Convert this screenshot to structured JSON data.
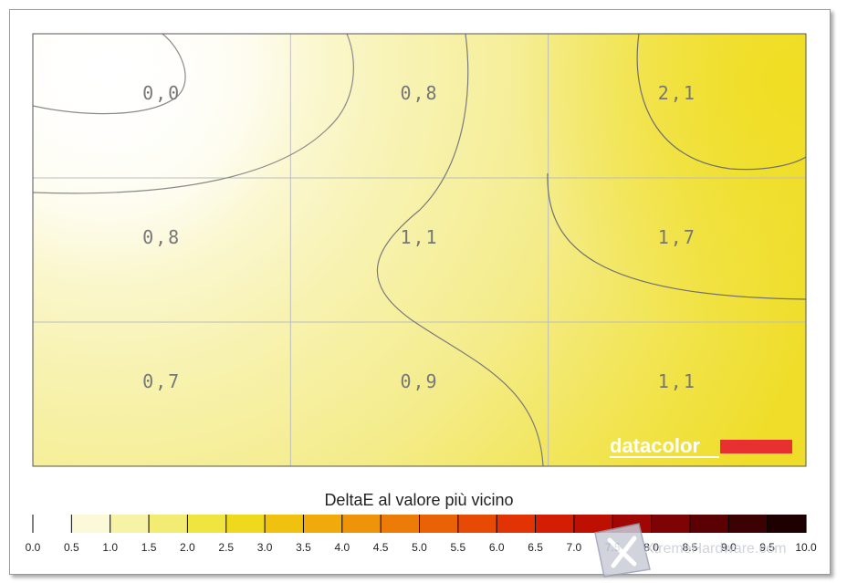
{
  "chart_data": {
    "type": "heatmap",
    "title": "DeltaE al valore più vicino",
    "rows": 3,
    "cols": 3,
    "cells": [
      [
        "0,0",
        "0,8",
        "2,1"
      ],
      [
        "0,8",
        "1,1",
        "1,7"
      ],
      [
        "0,7",
        "0,9",
        "1,1"
      ]
    ],
    "values": [
      [
        0.0,
        0.8,
        2.1
      ],
      [
        0.8,
        1.1,
        1.7
      ],
      [
        0.7,
        0.9,
        1.1
      ]
    ],
    "color_scale": {
      "min": 0.0,
      "max": 10.0,
      "tick_labels": [
        "0.0",
        "0.5",
        "1.0",
        "1.5",
        "2.0",
        "2.5",
        "3.0",
        "3.5",
        "4.0",
        "4.5",
        "5.0",
        "5.5",
        "6.0",
        "6.5",
        "7.0",
        "7.5",
        "8.0",
        "8.5",
        "9.0",
        "9.5",
        "10.0"
      ],
      "colors": [
        "#ffffff",
        "#fbf9d8",
        "#f7f3a6",
        "#f3ec73",
        "#f0e540",
        "#efd91c",
        "#f0c20f",
        "#f0aa0c",
        "#ee930a",
        "#ec7b08",
        "#ea6206",
        "#e64a05",
        "#e23304",
        "#d41e03",
        "#bd0f02",
        "#a00603",
        "#7d0304",
        "#5c0103",
        "#3c0102",
        "#1e0000"
      ]
    },
    "grid": true,
    "contours": true
  },
  "brand": "datacolor",
  "watermark": "XtremeHardware.com",
  "colors": {
    "frame_border": "#9a9a9a",
    "gridline": "#bdbdbd",
    "contour": "#808080",
    "brand_bar": "#e83030"
  }
}
